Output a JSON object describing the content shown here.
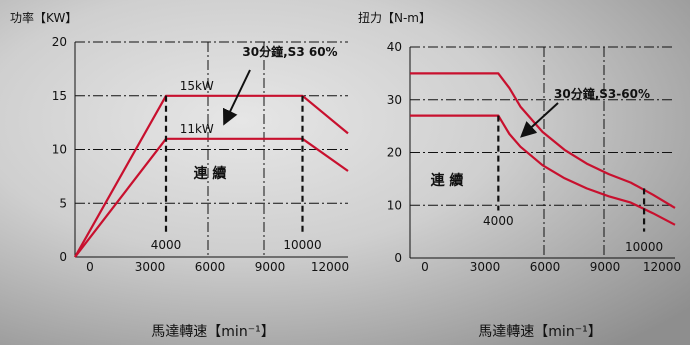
{
  "chart_data": [
    {
      "type": "line",
      "ylabel": "功率【KW】",
      "xlabel": "馬達轉速【min⁻¹】",
      "xlim": [
        0,
        12000
      ],
      "ylim": [
        0,
        20
      ],
      "x_ticks": [
        "0",
        "3000",
        "6000",
        "9000",
        "12000"
      ],
      "y_ticks": [
        "0",
        "5",
        "10",
        "15",
        "20"
      ],
      "grid": "dashed",
      "series": [
        {
          "name": "30分鐘,S3 60%",
          "x": [
            0,
            4000,
            10000,
            12000
          ],
          "y": [
            0,
            15,
            15,
            11.5
          ]
        },
        {
          "name": "連續",
          "x": [
            0,
            4000,
            10000,
            12000
          ],
          "y": [
            0,
            11,
            11,
            8
          ]
        }
      ],
      "annotations": [
        {
          "text": "15kW",
          "x": 5000,
          "y": 15
        },
        {
          "text": "11kW",
          "x": 5000,
          "y": 11
        },
        {
          "text": "4000",
          "x": 4000,
          "y": 0
        },
        {
          "text": "10000",
          "x": 10000,
          "y": 0
        }
      ],
      "callout": "30分鐘,S3 60%",
      "region_label": "連 續"
    },
    {
      "type": "line",
      "ylabel": "扭力【N-m】",
      "xlabel": "馬達轉速【min⁻¹】",
      "xlim": [
        0,
        12000
      ],
      "ylim": [
        0,
        40
      ],
      "x_ticks": [
        "0",
        "3000",
        "6000",
        "9000",
        "12000"
      ],
      "y_ticks": [
        "0",
        "10",
        "20",
        "30",
        "40"
      ],
      "grid": "dashed",
      "series": [
        {
          "name": "30分鐘,S3-60%",
          "x": [
            0,
            4000,
            4500,
            5000,
            6000,
            7000,
            8000,
            9000,
            10000,
            11000,
            12000
          ],
          "y": [
            35,
            35,
            32.2,
            28.7,
            23.9,
            20.5,
            17.9,
            15.9,
            14.3,
            12,
            9.5
          ]
        },
        {
          "name": "連續",
          "x": [
            0,
            4000,
            4500,
            5000,
            6000,
            7000,
            8000,
            9000,
            10000,
            11000,
            12000
          ],
          "y": [
            27,
            27,
            23.5,
            21.1,
            17.6,
            15.1,
            13.2,
            11.7,
            10.5,
            8.5,
            6.3
          ]
        }
      ],
      "annotations": [
        {
          "text": "4000",
          "x": 4000,
          "y": 8
        },
        {
          "text": "10000",
          "x": 10600,
          "y": 3
        }
      ],
      "callout": "30分鐘,S3-60%",
      "region_label": "連 續"
    }
  ]
}
